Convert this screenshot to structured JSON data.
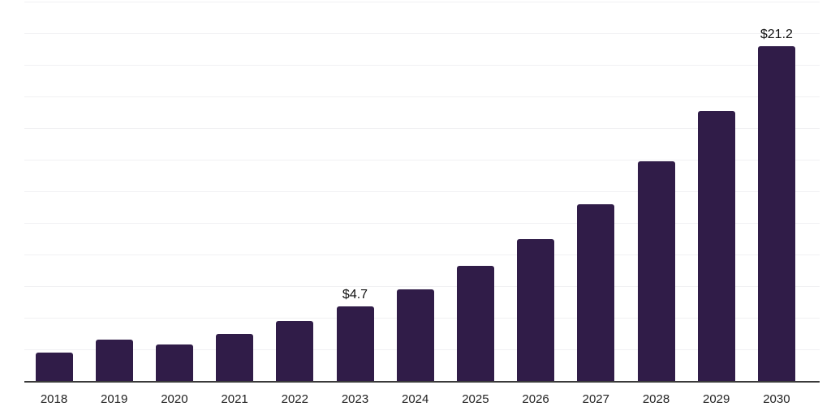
{
  "chart_data": {
    "type": "bar",
    "title": "",
    "xlabel": "",
    "ylabel": "",
    "categories": [
      "2018",
      "2019",
      "2020",
      "2021",
      "2022",
      "2023",
      "2024",
      "2025",
      "2026",
      "2027",
      "2028",
      "2029",
      "2030"
    ],
    "values": [
      1.8,
      2.6,
      2.3,
      3.0,
      3.8,
      4.7,
      5.8,
      7.3,
      9.0,
      11.2,
      13.9,
      17.1,
      21.2
    ],
    "data_labels": {
      "2023": "$4.7",
      "2030": "$21.2"
    },
    "ylim": [
      0,
      24
    ],
    "gridline_step": 2,
    "grid": "horizontal",
    "y_tick_labels_shown": false,
    "legend": "none",
    "colors": {
      "bar": "#301C48",
      "axis_line": "#3A3A3A",
      "gridline": "#F1F1F3",
      "value_label_text": "#111111",
      "tick_label_text": "#222222",
      "background": "#FFFFFF"
    }
  }
}
